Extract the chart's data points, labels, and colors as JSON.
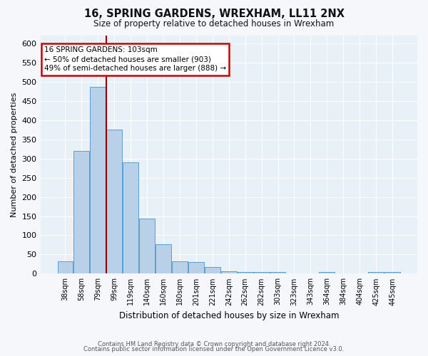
{
  "title1": "16, SPRING GARDENS, WREXHAM, LL11 2NX",
  "title2": "Size of property relative to detached houses in Wrexham",
  "xlabel": "Distribution of detached houses by size in Wrexham",
  "ylabel": "Number of detached properties",
  "footer1": "Contains HM Land Registry data © Crown copyright and database right 2024.",
  "footer2": "Contains public sector information licensed under the Open Government Licence v3.0.",
  "categories": [
    "38sqm",
    "58sqm",
    "79sqm",
    "99sqm",
    "119sqm",
    "140sqm",
    "160sqm",
    "180sqm",
    "201sqm",
    "221sqm",
    "242sqm",
    "262sqm",
    "282sqm",
    "303sqm",
    "323sqm",
    "343sqm",
    "364sqm",
    "384sqm",
    "404sqm",
    "425sqm",
    "445sqm"
  ],
  "values": [
    33,
    320,
    487,
    375,
    290,
    143,
    76,
    33,
    30,
    17,
    7,
    5,
    5,
    4,
    1,
    1,
    4,
    0,
    0,
    5,
    5
  ],
  "bar_color": "#b8d0e8",
  "bar_edge_color": "#5a9fd4",
  "bg_color": "#e8f0f8",
  "grid_color": "#ffffff",
  "fig_color": "#f5f7fa",
  "redline_color": "#990000",
  "redline_x": 2.5,
  "annotation_text": "16 SPRING GARDENS: 103sqm\n← 50% of detached houses are smaller (903)\n49% of semi-detached houses are larger (888) →",
  "annotation_box_color": "#ffffff",
  "annotation_box_edge": "#cc0000",
  "ylim": [
    0,
    620
  ],
  "yticks": [
    0,
    50,
    100,
    150,
    200,
    250,
    300,
    350,
    400,
    450,
    500,
    550,
    600
  ]
}
